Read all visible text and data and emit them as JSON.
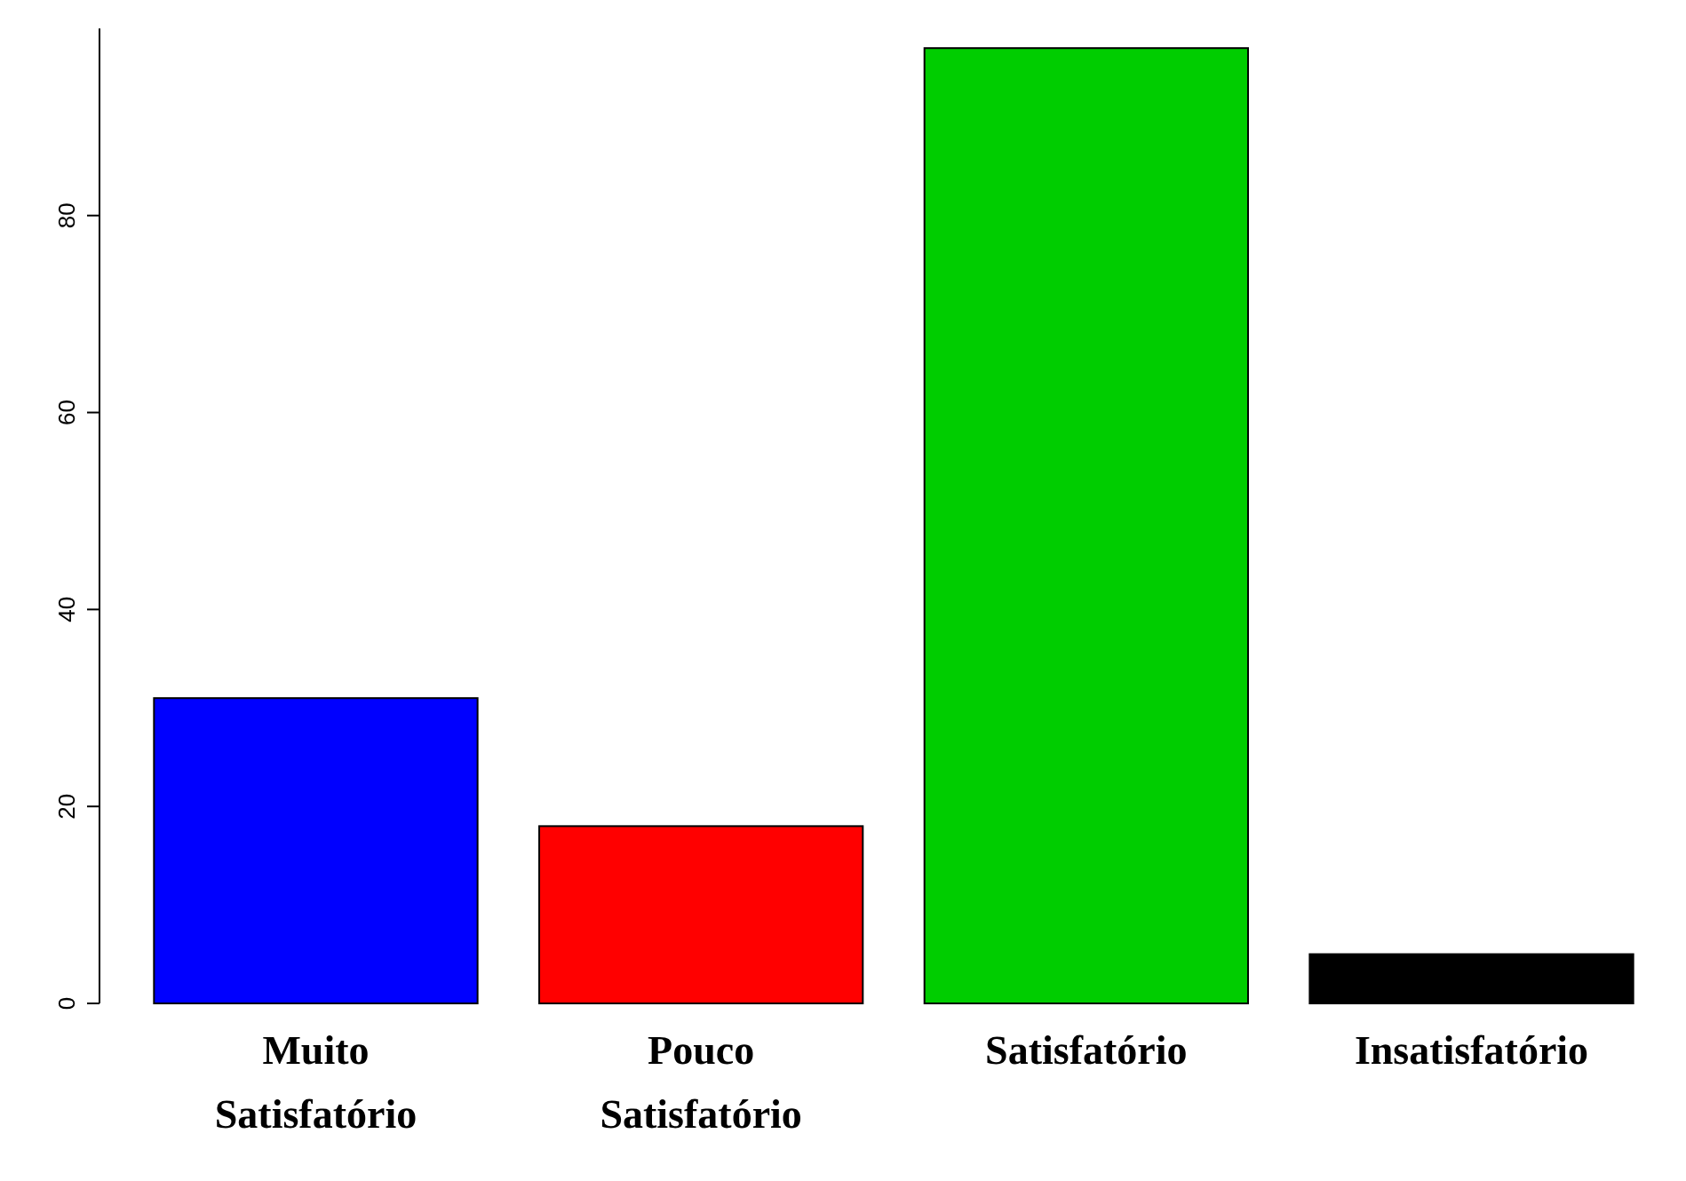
{
  "chart_data": {
    "type": "bar",
    "categories": [
      "Muito Satisfatório",
      "Pouco Satisfatório",
      "Satisfatório",
      "Insatisfatório"
    ],
    "values": [
      31,
      18,
      97,
      5
    ],
    "colors": [
      "#0000ff",
      "#ff0000",
      "#00cd00",
      "#000000"
    ],
    "ylim": [
      0,
      99
    ],
    "yticks": [
      0,
      20,
      40,
      60,
      80
    ],
    "grid": false
  }
}
